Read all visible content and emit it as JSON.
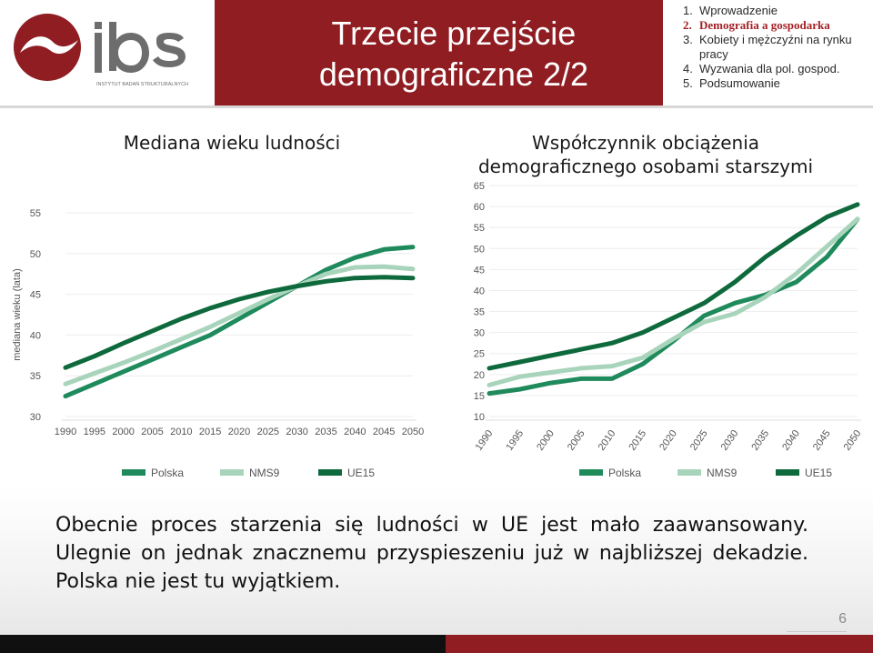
{
  "header": {
    "logo_text": "ibs",
    "logo_subtitle": "INSTYTUT BADAŃ STRUKTURALNYCH",
    "title_line1": "Trzecie przejście",
    "title_line2": "demograficzne 2/2",
    "menu": [
      {
        "num": "1.",
        "label": "Wprowadzenie",
        "active": false
      },
      {
        "num": "2.",
        "label": "Demografia a gospodarka",
        "active": true
      },
      {
        "num": "3.",
        "label": "Kobiety i mężczyźni na rynku",
        "active": false
      },
      {
        "num": "",
        "label": "pracy",
        "active": false
      },
      {
        "num": "4.",
        "label": "Wyzwania dla pol. gospod.",
        "active": false
      },
      {
        "num": "5.",
        "label": "Podsumowanie",
        "active": false
      }
    ]
  },
  "colors": {
    "polska": "#1f8a5c",
    "nms9": "#a9d4bc",
    "ue15": "#0e6a3c",
    "accent": "#8f1d22"
  },
  "chart_data": [
    {
      "type": "line",
      "title": "Mediana wieku ludności",
      "ylabel": "mediana wieku (lata)",
      "xlabel": "",
      "x": [
        1990,
        1995,
        2000,
        2005,
        2010,
        2015,
        2020,
        2025,
        2030,
        2035,
        2040,
        2045,
        2050
      ],
      "ylim": [
        30,
        55
      ],
      "yticks": [
        30,
        35,
        40,
        45,
        50,
        55
      ],
      "legend": "bottom",
      "series": [
        {
          "name": "Polska",
          "color": "#1f8a5c",
          "values": [
            32.5,
            34.0,
            35.5,
            37.0,
            38.5,
            40.0,
            42.0,
            44.0,
            46.0,
            48.0,
            49.5,
            50.5,
            50.8
          ]
        },
        {
          "name": "NMS9",
          "color": "#a9d4bc",
          "values": [
            34.0,
            35.3,
            36.6,
            38.0,
            39.5,
            41.0,
            42.7,
            44.4,
            46.0,
            47.5,
            48.3,
            48.4,
            48.1
          ]
        },
        {
          "name": "UE15",
          "color": "#0e6a3c",
          "values": [
            36.0,
            37.4,
            39.0,
            40.5,
            42.0,
            43.3,
            44.4,
            45.3,
            46.0,
            46.6,
            47.0,
            47.1,
            47.0
          ]
        }
      ]
    },
    {
      "type": "line",
      "title": "Współczynnik obciążenia demograficznego osobami starszymi",
      "xlabel": "",
      "ylabel": "",
      "x": [
        1990,
        1995,
        2000,
        2005,
        2010,
        2015,
        2020,
        2025,
        2030,
        2035,
        2040,
        2045,
        2050
      ],
      "ylim": [
        10,
        65
      ],
      "yticks": [
        10,
        15,
        20,
        25,
        30,
        35,
        40,
        45,
        50,
        55,
        60,
        65
      ],
      "legend": "bottom",
      "series": [
        {
          "name": "Polska",
          "color": "#1f8a5c",
          "values": [
            15.5,
            16.5,
            18.0,
            19.0,
            19.0,
            22.5,
            28.0,
            34.0,
            37.0,
            39.0,
            42.0,
            48.0,
            57.0
          ]
        },
        {
          "name": "NMS9",
          "color": "#a9d4bc",
          "values": [
            17.5,
            19.5,
            20.5,
            21.5,
            22.0,
            24.0,
            28.5,
            32.5,
            34.5,
            38.5,
            44.0,
            50.5,
            57.0
          ]
        },
        {
          "name": "UE15",
          "color": "#0e6a3c",
          "values": [
            21.5,
            23.0,
            24.5,
            26.0,
            27.5,
            30.0,
            33.5,
            37.0,
            42.0,
            48.0,
            53.0,
            57.5,
            60.5
          ]
        }
      ]
    }
  ],
  "summary": {
    "line1": "Obecnie proces starzenia się ludności w UE jest mało zaawansowany.",
    "line2": "Ulegnie on jednak znacznemu przyspieszeniu już w najbliższej dekadzie.",
    "line3": "Polska nie jest tu wyjątkiem."
  },
  "page_number": "6"
}
